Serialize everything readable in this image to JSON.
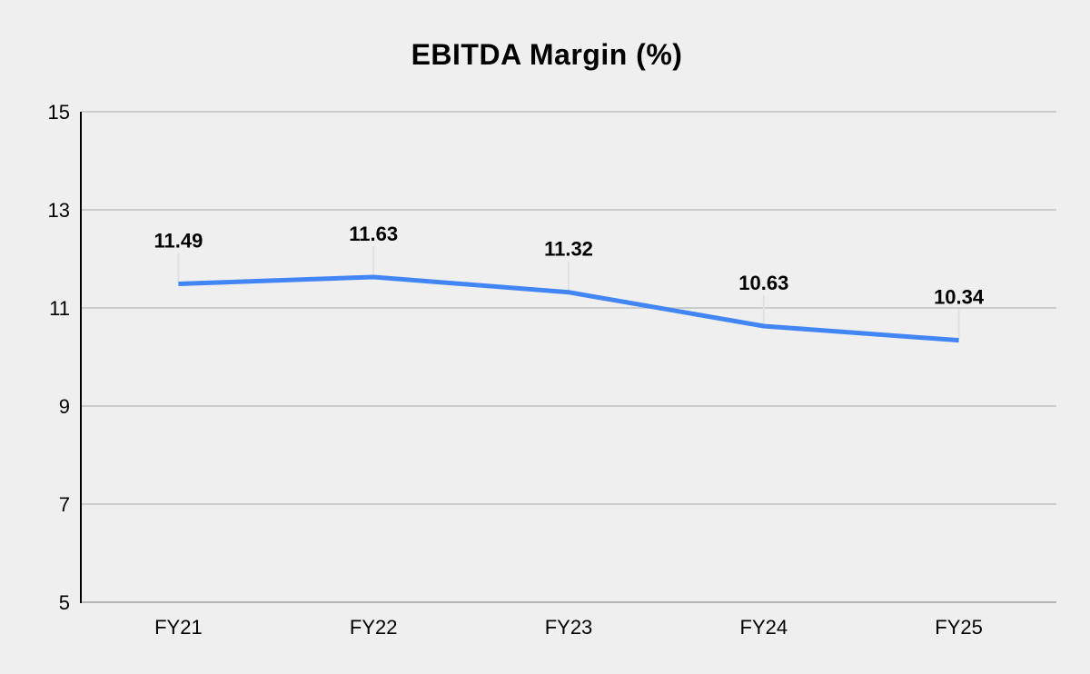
{
  "page": {
    "background": "#efefef"
  },
  "chart_data": {
    "type": "line",
    "title": "EBITDA Margin (%)",
    "categories": [
      "FY21",
      "FY22",
      "FY23",
      "FY24",
      "FY25"
    ],
    "series": [
      {
        "name": "EBITDA Margin (%)",
        "values": [
          11.49,
          11.63,
          11.32,
          10.63,
          10.34
        ],
        "color": "#4285f4"
      }
    ],
    "data_labels": [
      "11.49",
      "11.63",
      "11.32",
      "10.63",
      "10.34"
    ],
    "xlabel": "",
    "ylabel": "",
    "ylim": [
      5,
      15
    ],
    "yticks": [
      5,
      7,
      9,
      11,
      13,
      15
    ],
    "ytick_labels": [
      "5",
      "7",
      "9",
      "11",
      "13",
      "15"
    ],
    "grid": true,
    "legend": "none",
    "colors": {
      "background": "#efefef",
      "gridline": "#cccccc",
      "baseline": "#b7b7b7",
      "axis_line": "#000000",
      "annotation_stem": "#e0e0e0",
      "tick_text": "#000000",
      "annotation_text": "#000000"
    }
  }
}
